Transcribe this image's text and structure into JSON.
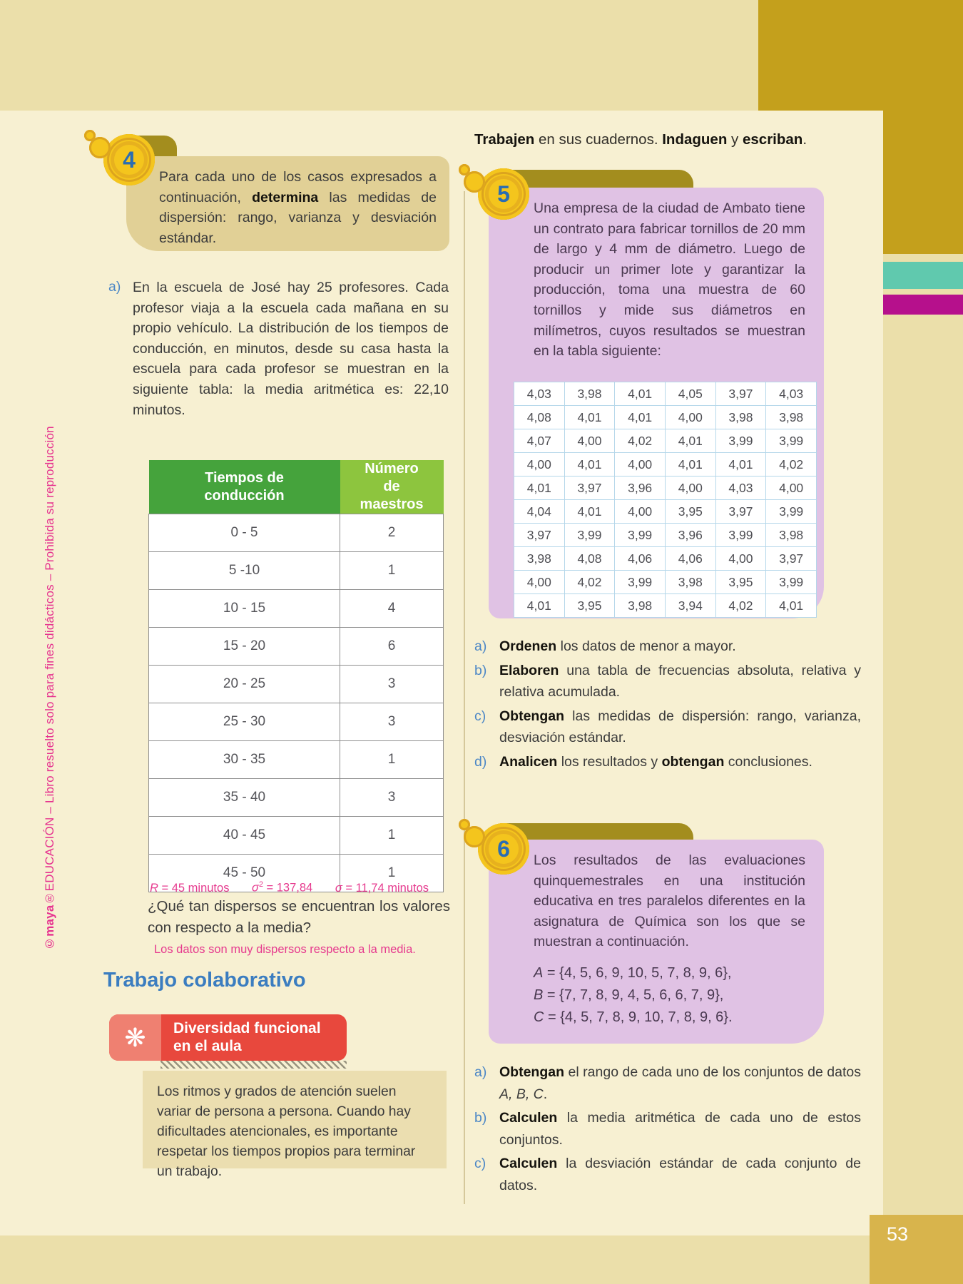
{
  "page_number": "53",
  "colors": {
    "page_background": "#ebdfaa",
    "content_panel": "#f7f0d2",
    "accent_mustard": "#c4a01c",
    "accent_teal": "#60c9ae",
    "accent_magenta": "#b6108c",
    "page_number_box": "#d8b44c",
    "exercise_box_tan": "#e1d096",
    "exercise_box_purple": "#e0c2e4",
    "table_header_green": "#45a33c",
    "table_header_light_green": "#8dc53e",
    "answer_pink": "#e63a8e",
    "collab_heading_blue": "#3b7dc0",
    "diversity_box_red": "#e8483d",
    "badge_gold": "#f4c51d"
  },
  "watermark": {
    "segments": [
      {
        "t": "©maya",
        "b": 1
      },
      {
        "t": "®EDUCACIÓN – Libro resuelto solo para fines didácticos – Prohibida su reproducción"
      }
    ]
  },
  "right_header": {
    "segments": [
      {
        "t": "Trabajen",
        "b": 1
      },
      {
        "t": " en sus cuadernos. "
      },
      {
        "t": "Indaguen",
        "b": 1
      },
      {
        "t": " y "
      },
      {
        "t": "escriban",
        "b": 1
      },
      {
        "t": "."
      }
    ]
  },
  "exercise4": {
    "number": "4",
    "prompt": {
      "segments": [
        {
          "t": "Para cada uno de los casos expresados a continuación, "
        },
        {
          "t": "determina",
          "b": 1
        },
        {
          "t": " las medidas de dispersión: rango, varianza y desviación estándar."
        }
      ]
    },
    "item_a": {
      "label": "a)",
      "text": "En la escuela de José hay 25 profesores. Cada profesor viaja a la escuela cada mañana en su propio vehículo. La distribución de los tiempos de conducción, en minutos, desde su casa hasta la escuela para cada profesor se muestran en la siguiente tabla: la media aritmética es: 22,10 minutos."
    },
    "freq_table": {
      "headers": [
        "Tiempos de conducción",
        "Número de maestros"
      ],
      "rows": [
        [
          "0 - 5",
          "2"
        ],
        [
          "5 -10",
          "1"
        ],
        [
          "10 - 15",
          "4"
        ],
        [
          "15 - 20",
          "6"
        ],
        [
          "20 - 25",
          "3"
        ],
        [
          "25 - 30",
          "3"
        ],
        [
          "30 - 35",
          "1"
        ],
        [
          "35 - 40",
          "3"
        ],
        [
          "40 - 45",
          "1"
        ],
        [
          "45 - 50",
          "1"
        ]
      ]
    },
    "stats": [
      {
        "segments": [
          {
            "t": "R",
            "i": 1
          },
          {
            "t": " = 45 minutos"
          }
        ]
      },
      {
        "segments": [
          {
            "t": "σ",
            "i": 1
          },
          {
            "t": "2",
            "sup": 1
          },
          {
            "t": " = 137,84"
          }
        ]
      },
      {
        "segments": [
          {
            "t": "σ",
            "i": 1
          },
          {
            "t": " = 11,74 minutos"
          }
        ]
      }
    ],
    "question": "¿Qué tan dispersos se encuentran los valores con respecto a la media?",
    "answer": "Los datos son muy dispersos respecto a la media."
  },
  "collaborative": {
    "heading": "Trabajo colaborativo",
    "flower_icon": "❋",
    "badge_title_line1": "Diversidad funcional",
    "badge_title_line2": "en el aula",
    "body": "Los ritmos y grados de atención suelen variar de persona a persona. Cuando hay dificultades atencionales, es importante respetar los tiempos propios para terminar un trabajo."
  },
  "exercise5": {
    "number": "5",
    "prompt": "Una empresa de la ciudad de Ambato tiene un contrato para fabricar tornillos de 20 mm de largo y 4 mm de diámetro. Luego de producir un primer lote y garantizar la producción, toma una muestra de 60 tornillos y mide sus diámetros en milímetros, cuyos resultados se muestran en la tabla siguiente:",
    "sample_table": {
      "rows": [
        [
          "4,03",
          "3,98",
          "4,01",
          "4,05",
          "3,97",
          "4,03"
        ],
        [
          "4,08",
          "4,01",
          "4,01",
          "4,00",
          "3,98",
          "3,98"
        ],
        [
          "4,07",
          "4,00",
          "4,02",
          "4,01",
          "3,99",
          "3,99"
        ],
        [
          "4,00",
          "4,01",
          "4,00",
          "4,01",
          "4,01",
          "4,02"
        ],
        [
          "4,01",
          "3,97",
          "3,96",
          "4,00",
          "4,03",
          "4,00"
        ],
        [
          "4,04",
          "4,01",
          "4,00",
          "3,95",
          "3,97",
          "3,99"
        ],
        [
          "3,97",
          "3,99",
          "3,99",
          "3,96",
          "3,99",
          "3,98"
        ],
        [
          "3,98",
          "4,08",
          "4,06",
          "4,06",
          "4,00",
          "3,97"
        ],
        [
          "4,00",
          "4,02",
          "3,99",
          "3,98",
          "3,95",
          "3,99"
        ],
        [
          "4,01",
          "3,95",
          "3,98",
          "3,94",
          "4,02",
          "4,01"
        ]
      ]
    },
    "items": [
      {
        "label": "a)",
        "segments": [
          {
            "t": "Ordenen",
            "b": 1
          },
          {
            "t": " los datos de menor a mayor."
          }
        ]
      },
      {
        "label": "b)",
        "segments": [
          {
            "t": "Elaboren",
            "b": 1
          },
          {
            "t": " una tabla de frecuencias absoluta, relativa y relativa acumulada."
          }
        ]
      },
      {
        "label": "c)",
        "segments": [
          {
            "t": "Obtengan",
            "b": 1
          },
          {
            "t": " las medidas de dispersión: rango, varianza, desviación estándar."
          }
        ]
      },
      {
        "label": "d)",
        "segments": [
          {
            "t": "Analicen",
            "b": 1
          },
          {
            "t": " los resultados y "
          },
          {
            "t": "obtengan",
            "b": 1
          },
          {
            "t": " conclusiones."
          }
        ]
      }
    ]
  },
  "exercise6": {
    "number": "6",
    "prompt": "Los resultados de las evaluaciones quinquemestrales en una institución educativa en tres paralelos diferentes en la asignatura de Química son los que se muestran a continuación.",
    "sets": [
      {
        "name": "A",
        "value": " = {4, 5, 6, 9, 10, 5, 7, 8, 9, 6},"
      },
      {
        "name": "B",
        "value": " = {7, 7, 8, 9, 4, 5, 6, 6, 7, 9},"
      },
      {
        "name": "C",
        "value": " = {4, 5, 7, 8, 9, 10, 7, 8, 9, 6}."
      }
    ],
    "items": [
      {
        "label": "a)",
        "segments": [
          {
            "t": "Obtengan",
            "b": 1
          },
          {
            "t": " el rango de cada uno de los conjuntos de datos "
          },
          {
            "t": "A, B, C",
            "i": 1
          },
          {
            "t": "."
          }
        ]
      },
      {
        "label": "b)",
        "segments": [
          {
            "t": "Calculen",
            "b": 1
          },
          {
            "t": " la media aritmética de cada uno de estos conjuntos."
          }
        ]
      },
      {
        "label": "c)",
        "segments": [
          {
            "t": "Calculen",
            "b": 1
          },
          {
            "t": " la desviación estándar de cada conjunto de datos."
          }
        ]
      }
    ]
  }
}
